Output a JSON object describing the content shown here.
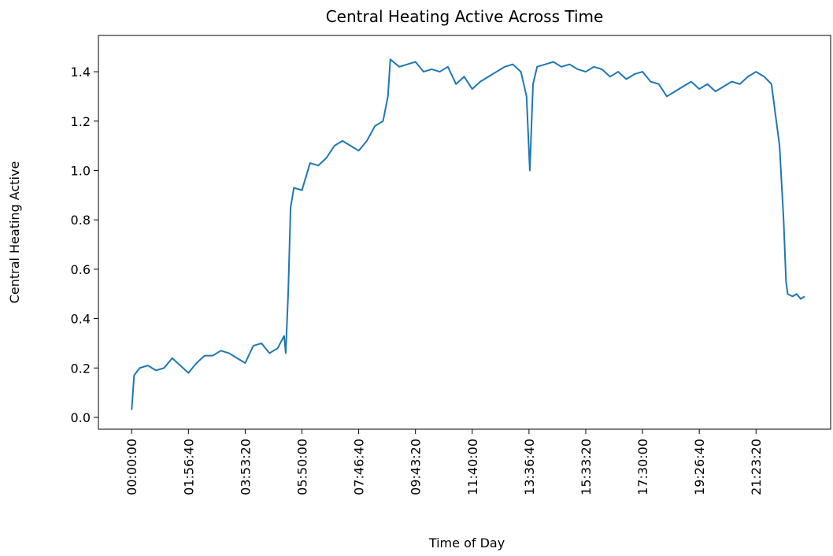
{
  "chart_data": {
    "type": "line",
    "title": "Central Heating Active Across Time",
    "xlabel": "Time of Day",
    "ylabel": "Central Heating Active",
    "color": "#1f77b4",
    "x": [
      0,
      300,
      1000,
      2000,
      3000,
      4000,
      5000,
      6000,
      7000,
      8000,
      9000,
      10000,
      11000,
      12000,
      13000,
      14000,
      15000,
      16000,
      17000,
      18000,
      18800,
      19000,
      19300,
      19600,
      20000,
      21000,
      22000,
      23000,
      24000,
      25000,
      26000,
      27000,
      28000,
      29000,
      30000,
      31000,
      31600,
      31900,
      33000,
      34000,
      35000,
      36000,
      37000,
      38000,
      39000,
      40000,
      41000,
      42000,
      43000,
      44000,
      45000,
      46000,
      47000,
      48000,
      48700,
      49100,
      49500,
      50000,
      51000,
      52000,
      53000,
      54000,
      55000,
      56000,
      57000,
      58000,
      59000,
      60000,
      61000,
      62000,
      63000,
      64000,
      65000,
      66000,
      67000,
      68000,
      69000,
      70000,
      71000,
      72000,
      73000,
      74000,
      75000,
      76000,
      77000,
      78000,
      78900,
      79500,
      79900,
      80400,
      80700,
      80900,
      81500,
      82000,
      82500,
      83000
    ],
    "values": [
      0.03,
      0.17,
      0.2,
      0.21,
      0.19,
      0.2,
      0.24,
      0.21,
      0.18,
      0.22,
      0.25,
      0.25,
      0.27,
      0.26,
      0.24,
      0.22,
      0.29,
      0.3,
      0.26,
      0.28,
      0.33,
      0.26,
      0.5,
      0.85,
      0.93,
      0.92,
      1.03,
      1.02,
      1.05,
      1.1,
      1.12,
      1.1,
      1.08,
      1.12,
      1.18,
      1.2,
      1.3,
      1.45,
      1.42,
      1.43,
      1.44,
      1.4,
      1.41,
      1.4,
      1.42,
      1.35,
      1.38,
      1.33,
      1.36,
      1.38,
      1.4,
      1.42,
      1.43,
      1.4,
      1.3,
      1.0,
      1.35,
      1.42,
      1.43,
      1.44,
      1.42,
      1.43,
      1.41,
      1.4,
      1.42,
      1.41,
      1.38,
      1.4,
      1.37,
      1.39,
      1.4,
      1.36,
      1.35,
      1.3,
      1.32,
      1.34,
      1.36,
      1.33,
      1.35,
      1.32,
      1.34,
      1.36,
      1.35,
      1.38,
      1.4,
      1.38,
      1.35,
      1.2,
      1.1,
      0.8,
      0.55,
      0.5,
      0.49,
      0.5,
      0.48,
      0.49
    ],
    "xlim": [
      -4100,
      86200
    ],
    "ylim": [
      -0.048,
      1.547
    ],
    "xticks": [
      {
        "value": 0,
        "label": "00:00:00"
      },
      {
        "value": 7000,
        "label": "01:56:40"
      },
      {
        "value": 14000,
        "label": "03:53:20"
      },
      {
        "value": 21000,
        "label": "05:50:00"
      },
      {
        "value": 28000,
        "label": "07:46:40"
      },
      {
        "value": 35000,
        "label": "09:43:20"
      },
      {
        "value": 42000,
        "label": "11:40:00"
      },
      {
        "value": 49000,
        "label": "13:36:40"
      },
      {
        "value": 56000,
        "label": "15:33:20"
      },
      {
        "value": 63000,
        "label": "17:30:00"
      },
      {
        "value": 70000,
        "label": "19:26:40"
      },
      {
        "value": 77000,
        "label": "21:23:20"
      }
    ],
    "yticks": [
      {
        "value": 0,
        "label": "0.0"
      },
      0.2,
      0.4,
      0.6,
      0.8,
      {
        "value": 1,
        "label": "1.0"
      },
      1.2,
      1.4
    ],
    "grid": false
  }
}
